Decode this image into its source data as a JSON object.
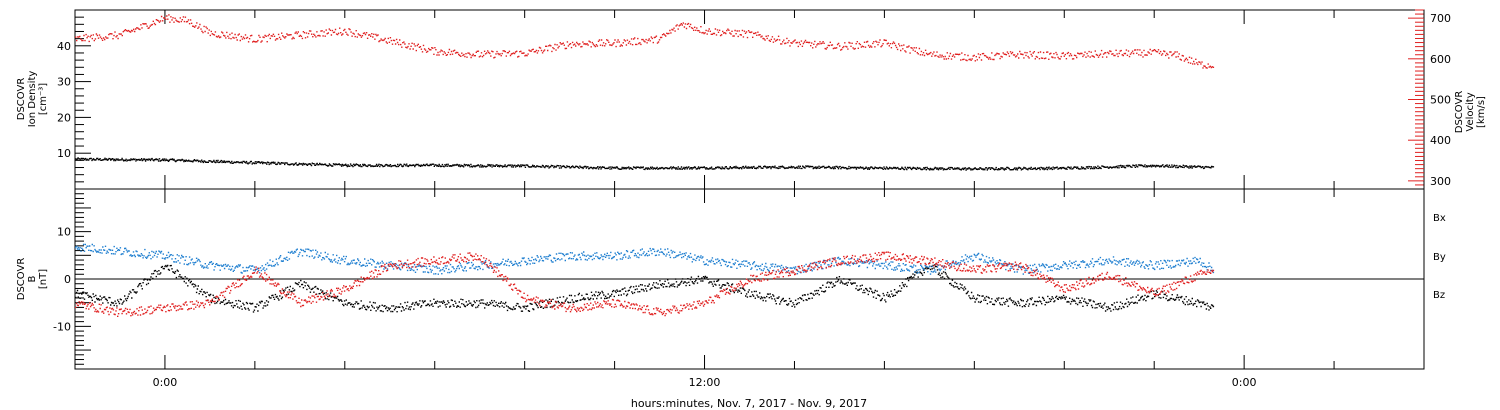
{
  "colors": {
    "density": "#000000",
    "velocity": "#e02020",
    "bx": "#000000",
    "by": "#1f7fd0",
    "bz": "#e02020"
  },
  "chart_data": [
    {
      "type": "scatter",
      "panel": "top",
      "y_left": {
        "label_lines": [
          "DSCOVR",
          "Ion Density",
          "[cm⁻³]"
        ],
        "range": [
          0,
          50
        ],
        "ticks": [
          10,
          20,
          30,
          40
        ],
        "tick_labels": [
          "10",
          "20",
          "30",
          "40"
        ]
      },
      "y_right": {
        "label_lines": [
          "DSCOVR",
          "Velocity",
          "[km/s]"
        ],
        "range": [
          280,
          720
        ],
        "ticks": [
          300,
          400,
          500,
          600,
          700
        ],
        "tick_labels": [
          "300",
          "400",
          "500",
          "600",
          "700"
        ]
      },
      "x_hours_range": [
        -2,
        28
      ],
      "series": [
        {
          "name": "Ion Density",
          "axis": "left",
          "color": "#000000",
          "x": [
            -2,
            0,
            2,
            4,
            6,
            8,
            10,
            12,
            14,
            16,
            18,
            20,
            22,
            23.3
          ],
          "y": [
            8.5,
            8.3,
            7.5,
            6.8,
            6.8,
            6.6,
            6.0,
            6.1,
            6.3,
            6.0,
            5.8,
            6.0,
            6.7,
            6.2
          ]
        },
        {
          "name": "Velocity",
          "axis": "right",
          "color": "#e02020",
          "x": [
            -2,
            -1,
            0,
            0.5,
            1,
            2,
            3,
            4,
            5,
            6,
            7,
            8,
            9,
            10,
            11,
            11.5,
            12,
            13,
            14,
            15,
            16,
            17,
            18,
            19,
            20,
            21,
            22,
            22.5,
            23,
            23.3
          ],
          "y": [
            650,
            660,
            702,
            695,
            665,
            650,
            660,
            670,
            645,
            620,
            612,
            615,
            638,
            640,
            650,
            688,
            670,
            662,
            640,
            632,
            640,
            612,
            605,
            612,
            608,
            614,
            616,
            610,
            588,
            585
          ]
        }
      ]
    },
    {
      "type": "scatter",
      "panel": "bottom",
      "y_left": {
        "label_lines": [
          "DSCOVR",
          "B",
          "[nT]"
        ],
        "range": [
          -19,
          19
        ],
        "ticks": [
          -10,
          0,
          10
        ],
        "tick_labels": [
          "-10",
          "0",
          "10"
        ]
      },
      "x_axis": {
        "label": "hours:minutes, Nov.  7, 2017 - Nov.  9, 2017",
        "ticks_hours": [
          0,
          12,
          24
        ],
        "tick_labels": [
          "0:00",
          "12:00",
          "0:00"
        ],
        "range_hours": [
          -2,
          28
        ]
      },
      "legend": {
        "placement": "right",
        "entries": [
          "Bx",
          "By",
          "Bz"
        ]
      },
      "series": [
        {
          "name": "Bx",
          "color": "#000000",
          "x": [
            -2,
            -1,
            0,
            1,
            2,
            3,
            4,
            5,
            6,
            7,
            8,
            9,
            10,
            11,
            12,
            13,
            14,
            15,
            16,
            17,
            18,
            19,
            20,
            21,
            22,
            23,
            23.3
          ],
          "y": [
            -3,
            -5,
            3,
            -4,
            -6,
            -1,
            -5,
            -6,
            -5,
            -5,
            -6,
            -4,
            -3,
            -1,
            0,
            -3,
            -5,
            0,
            -4,
            3,
            -4,
            -5,
            -4,
            -6,
            -3,
            -5,
            -6
          ]
        },
        {
          "name": "By",
          "color": "#1f7fd0",
          "x": [
            -2,
            -1,
            0,
            1,
            2,
            3,
            4,
            5,
            6,
            7,
            8,
            9,
            10,
            11,
            12,
            13,
            14,
            15,
            16,
            17,
            18,
            19,
            20,
            21,
            22,
            23,
            23.3
          ],
          "y": [
            7,
            6,
            5,
            3,
            2,
            6,
            4,
            3,
            2,
            3,
            4,
            5,
            5,
            6,
            4,
            3,
            2,
            4,
            3,
            2,
            5,
            2,
            3,
            4,
            3,
            4,
            2
          ]
        },
        {
          "name": "Bz",
          "color": "#e02020",
          "x": [
            -2,
            -1,
            0,
            1,
            2,
            3,
            4,
            5,
            6,
            7,
            8,
            9,
            10,
            11,
            12,
            13,
            14,
            15,
            16,
            17,
            18,
            19,
            20,
            21,
            22,
            23,
            23.3
          ],
          "y": [
            -5,
            -7,
            -6,
            -5,
            2,
            -5,
            -2,
            3,
            4,
            5,
            -4,
            -6,
            -5,
            -7,
            -5,
            0,
            2,
            4,
            5,
            4,
            2,
            3,
            -2,
            1,
            -3,
            1,
            2
          ]
        }
      ]
    }
  ]
}
